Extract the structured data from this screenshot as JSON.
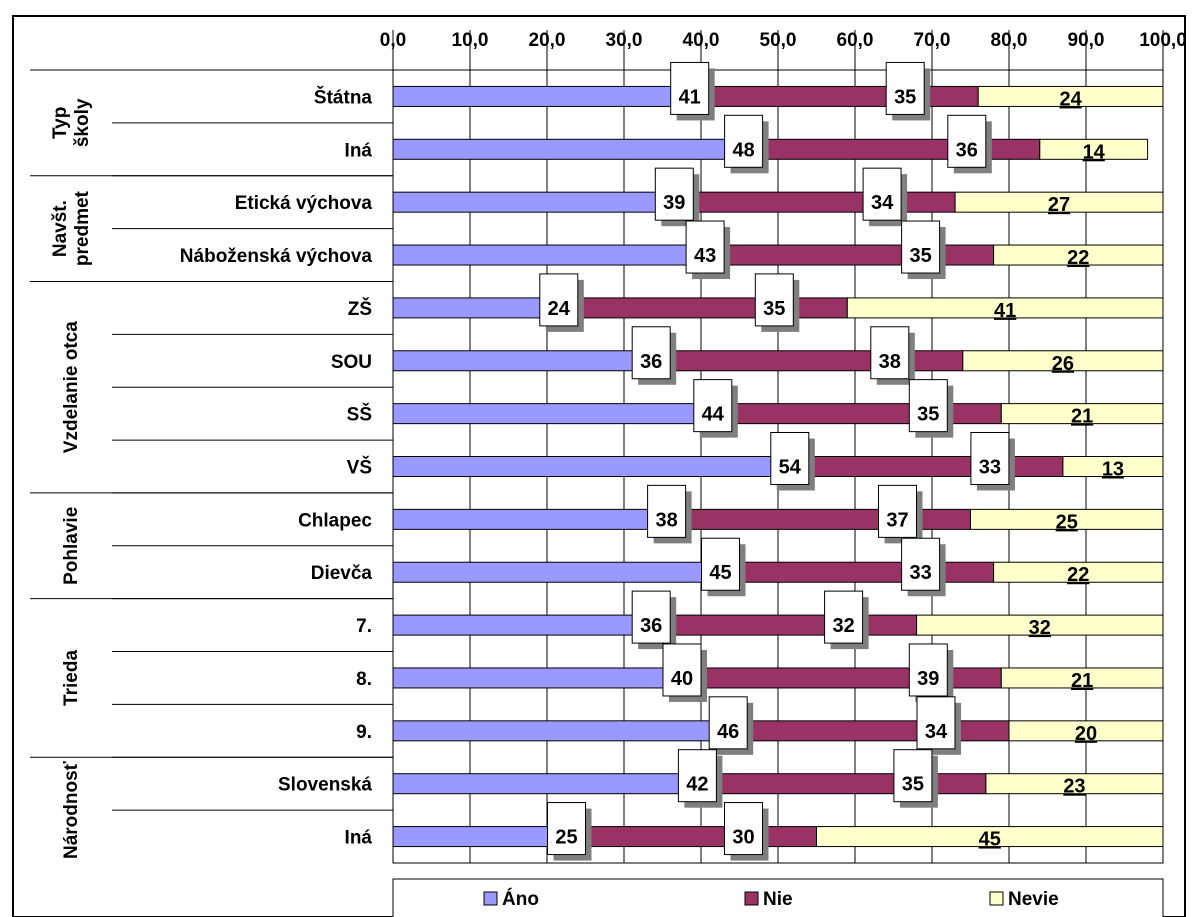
{
  "chart_data": {
    "type": "bar",
    "orientation": "horizontal",
    "stacked": true,
    "xlim": [
      0,
      100
    ],
    "xticks": [
      "0,0",
      "10,0",
      "20,0",
      "30,0",
      "40,0",
      "50,0",
      "60,0",
      "70,0",
      "80,0",
      "90,0",
      "100,0"
    ],
    "grid": true,
    "legend_position": "bottom",
    "categories": [
      "Štátna",
      "Iná",
      "Etická výchova",
      "Náboženská výchova",
      "ZŠ",
      "SOU",
      "SŠ",
      "VŠ",
      "Chlapec",
      "Dievča",
      "7.",
      "8.",
      "9.",
      "Slovenská",
      "Iná"
    ],
    "groups": [
      {
        "label": "Typ\nškoly",
        "rows": 2
      },
      {
        "label": "Navšt.\npredmet",
        "rows": 2
      },
      {
        "label": "Vzdelanie otca",
        "rows": 4
      },
      {
        "label": "Pohlavie",
        "rows": 2
      },
      {
        "label": "Trieda",
        "rows": 3
      },
      {
        "label": "Národnosť",
        "rows": 2
      }
    ],
    "series": [
      {
        "name": "Áno",
        "color": "#9999ff",
        "values": [
          41,
          48,
          39,
          43,
          24,
          36,
          44,
          54,
          38,
          45,
          36,
          40,
          46,
          42,
          25
        ]
      },
      {
        "name": "Nie",
        "color": "#993366",
        "values": [
          35,
          36,
          34,
          35,
          35,
          38,
          35,
          33,
          37,
          33,
          32,
          39,
          34,
          35,
          30
        ]
      },
      {
        "name": "Nevie",
        "color": "#ffffcc",
        "values": [
          24,
          14,
          27,
          22,
          41,
          26,
          21,
          13,
          25,
          22,
          32,
          21,
          20,
          23,
          45
        ]
      }
    ]
  }
}
